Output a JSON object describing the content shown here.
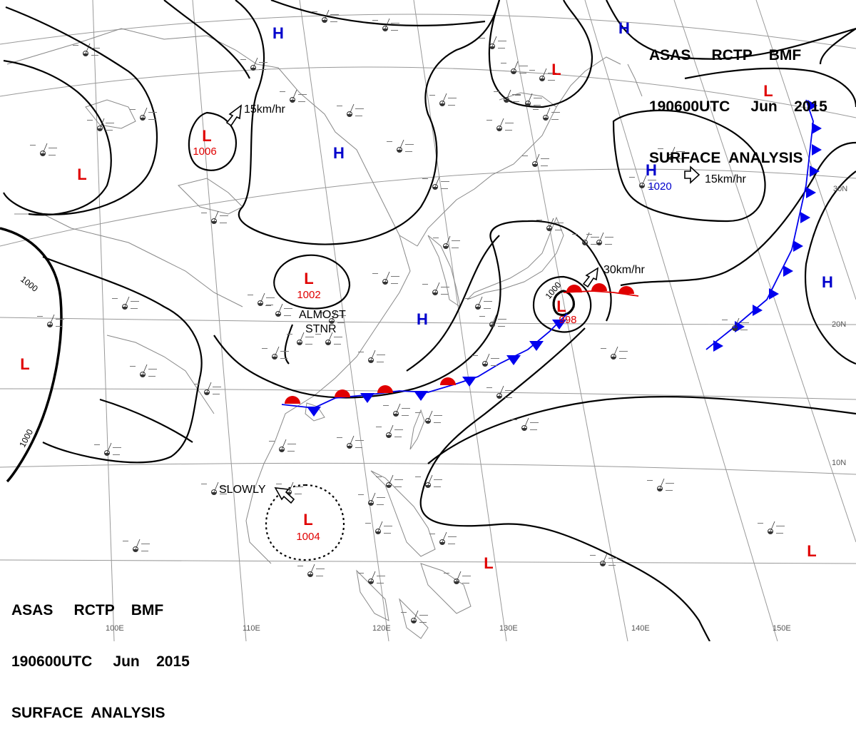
{
  "header": {
    "line1": [
      "ASAS",
      "RCTP",
      "BMF"
    ],
    "line2": [
      "190600UTC",
      "Jun",
      "2015"
    ],
    "line3": "SURFACE  ANALYSIS"
  },
  "centers": [
    {
      "type": "H",
      "pressure": ""
    },
    {
      "type": "H",
      "pressure": ""
    },
    {
      "type": "H",
      "pressure": ""
    },
    {
      "type": "H",
      "pressure": "1020"
    },
    {
      "type": "H",
      "pressure": ""
    },
    {
      "type": "H",
      "pressure": ""
    },
    {
      "type": "L",
      "pressure": ""
    },
    {
      "type": "L",
      "pressure": ""
    },
    {
      "type": "L",
      "pressure": "1006"
    },
    {
      "type": "L",
      "pressure": "1002"
    },
    {
      "type": "L",
      "pressure": "1004"
    },
    {
      "type": "L",
      "pressure": "998"
    },
    {
      "type": "L",
      "pressure": ""
    },
    {
      "type": "L",
      "pressure": ""
    },
    {
      "type": "L",
      "pressure": ""
    },
    {
      "type": "L",
      "pressure": ""
    }
  ],
  "motions": [
    {
      "label": "15km/hr"
    },
    {
      "label": "15km/hr"
    },
    {
      "label": "30km/hr"
    },
    {
      "label": "SLOWLY"
    }
  ],
  "annotations": [
    "ALMOST",
    "STNR"
  ],
  "isobar_labels": [
    "1000",
    "1000",
    "1000"
  ],
  "lon_labels": [
    "100E",
    "110E",
    "120E",
    "130E",
    "140E",
    "150E"
  ],
  "lat_labels": [
    "30N",
    "20N",
    "10N"
  ],
  "colors": {
    "high": "#0000cc",
    "low": "#e00000",
    "cold_front": "#0000ee",
    "warm_front": "#e00000",
    "isobar": "#000000",
    "coast": "#888888",
    "grid": "#999999"
  }
}
